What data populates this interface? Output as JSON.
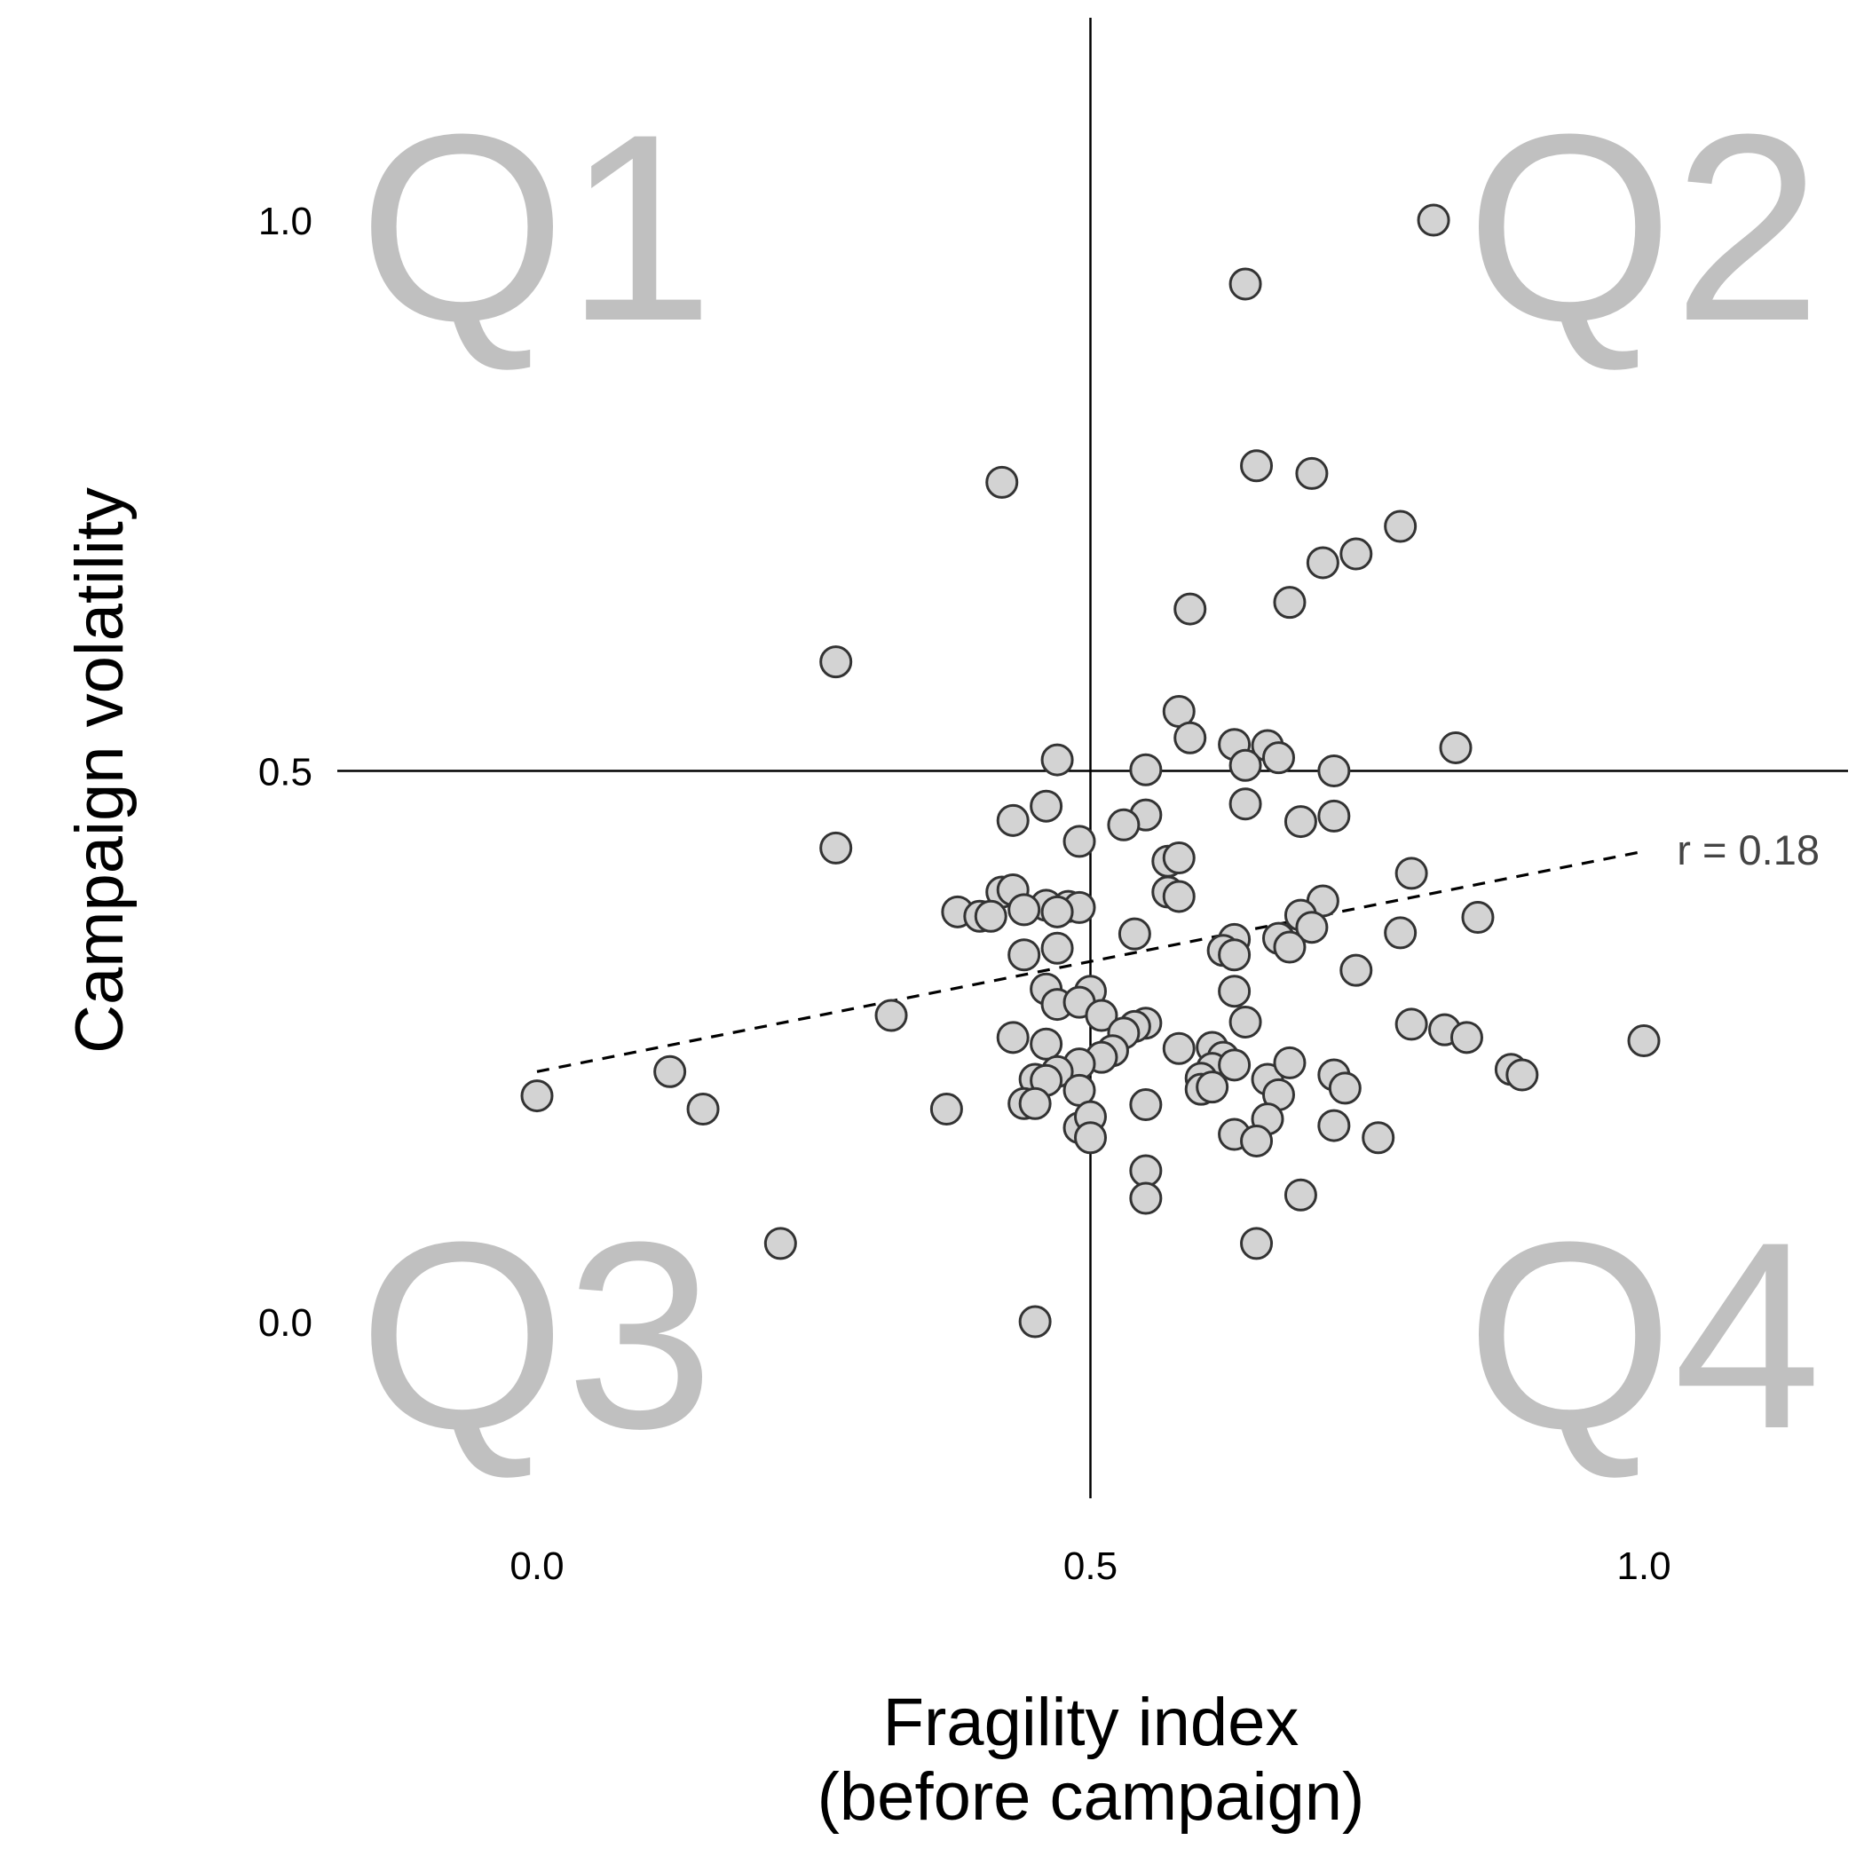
{
  "chart_data": {
    "type": "scatter",
    "xlabel": [
      "Fragility index",
      "(before campaign)"
    ],
    "ylabel": "Campaign volatility",
    "xlim": [
      -0.18,
      1.18
    ],
    "ylim": [
      -0.18,
      1.18
    ],
    "x_ticks": [
      "0.0",
      "0.5",
      "1.0"
    ],
    "y_ticks": [
      "1.0",
      "0.5",
      "0.0"
    ],
    "x_tick_values": [
      0.0,
      0.5,
      1.0
    ],
    "y_tick_values": [
      1.0,
      0.5,
      0.0
    ],
    "reference_lines": {
      "x": 0.5,
      "y": 0.5
    },
    "quadrants": [
      {
        "label": "Q1",
        "position": "top-left"
      },
      {
        "label": "Q2",
        "position": "top-right"
      },
      {
        "label": "Q3",
        "position": "bottom-left"
      },
      {
        "label": "Q4",
        "position": "bottom-right"
      }
    ],
    "trendline": {
      "x": [
        0.0,
        1.0
      ],
      "y": [
        0.227,
        0.427
      ],
      "label": "r = 0.18"
    },
    "grid": false,
    "points": [
      [
        0.81,
        1.0
      ],
      [
        0.64,
        0.942
      ],
      [
        0.65,
        0.777
      ],
      [
        0.7,
        0.77
      ],
      [
        0.42,
        0.762
      ],
      [
        0.78,
        0.722
      ],
      [
        0.74,
        0.697
      ],
      [
        0.71,
        0.689
      ],
      [
        0.59,
        0.647
      ],
      [
        0.68,
        0.653
      ],
      [
        0.27,
        0.599
      ],
      [
        0.58,
        0.554
      ],
      [
        0.59,
        0.53
      ],
      [
        0.63,
        0.524
      ],
      [
        0.66,
        0.523
      ],
      [
        0.67,
        0.512
      ],
      [
        0.64,
        0.505
      ],
      [
        0.47,
        0.51
      ],
      [
        0.55,
        0.501
      ],
      [
        0.72,
        0.5
      ],
      [
        0.83,
        0.521
      ],
      [
        0.64,
        0.47
      ],
      [
        0.46,
        0.468
      ],
      [
        0.55,
        0.46
      ],
      [
        0.43,
        0.455
      ],
      [
        0.69,
        0.454
      ],
      [
        0.72,
        0.459
      ],
      [
        0.53,
        0.451
      ],
      [
        0.49,
        0.436
      ],
      [
        0.27,
        0.43
      ],
      [
        0.57,
        0.418
      ],
      [
        0.58,
        0.421
      ],
      [
        0.79,
        0.407
      ],
      [
        0.42,
        0.39
      ],
      [
        0.43,
        0.392
      ],
      [
        0.46,
        0.378
      ],
      [
        0.48,
        0.377
      ],
      [
        0.49,
        0.376
      ],
      [
        0.44,
        0.374
      ],
      [
        0.38,
        0.372
      ],
      [
        0.4,
        0.368
      ],
      [
        0.41,
        0.368
      ],
      [
        0.47,
        0.372
      ],
      [
        0.57,
        0.39
      ],
      [
        0.58,
        0.386
      ],
      [
        0.71,
        0.382
      ],
      [
        0.69,
        0.369
      ],
      [
        0.7,
        0.358
      ],
      [
        0.85,
        0.367
      ],
      [
        0.54,
        0.352
      ],
      [
        0.63,
        0.347
      ],
      [
        0.62,
        0.337
      ],
      [
        0.63,
        0.333
      ],
      [
        0.67,
        0.348
      ],
      [
        0.68,
        0.34
      ],
      [
        0.78,
        0.353
      ],
      [
        0.47,
        0.339
      ],
      [
        0.44,
        0.333
      ],
      [
        0.74,
        0.319
      ],
      [
        0.5,
        0.3
      ],
      [
        0.46,
        0.302
      ],
      [
        0.47,
        0.288
      ],
      [
        0.49,
        0.29
      ],
      [
        0.32,
        0.278
      ],
      [
        0.51,
        0.278
      ],
      [
        0.63,
        0.3
      ],
      [
        0.64,
        0.272
      ],
      [
        0.79,
        0.27
      ],
      [
        0.82,
        0.265
      ],
      [
        0.84,
        0.258
      ],
      [
        0.55,
        0.271
      ],
      [
        0.54,
        0.268
      ],
      [
        0.53,
        0.262
      ],
      [
        0.43,
        0.258
      ],
      [
        0.46,
        0.252
      ],
      [
        0.52,
        0.246
      ],
      [
        0.51,
        0.24
      ],
      [
        0.49,
        0.234
      ],
      [
        0.58,
        0.248
      ],
      [
        0.61,
        0.249
      ],
      [
        0.62,
        0.24
      ],
      [
        0.61,
        0.23
      ],
      [
        0.63,
        0.233
      ],
      [
        0.66,
        0.22
      ],
      [
        0.68,
        0.235
      ],
      [
        0.72,
        0.224
      ],
      [
        0.73,
        0.212
      ],
      [
        0.6,
        0.221
      ],
      [
        0.6,
        0.211
      ],
      [
        0.61,
        0.213
      ],
      [
        0.47,
        0.227
      ],
      [
        0.45,
        0.22
      ],
      [
        0.46,
        0.219
      ],
      [
        0.44,
        0.198
      ],
      [
        0.45,
        0.198
      ],
      [
        0.49,
        0.21
      ],
      [
        0.55,
        0.197
      ],
      [
        0.67,
        0.206
      ],
      [
        0.66,
        0.184
      ],
      [
        0.49,
        0.176
      ],
      [
        0.5,
        0.186
      ],
      [
        0.5,
        0.167
      ],
      [
        0.63,
        0.17
      ],
      [
        0.65,
        0.164
      ],
      [
        0.72,
        0.178
      ],
      [
        0.76,
        0.167
      ],
      [
        0.12,
        0.227
      ],
      [
        0.15,
        0.193
      ],
      [
        0.37,
        0.193
      ],
      [
        1.0,
        0.255
      ],
      [
        0.88,
        0.229
      ],
      [
        0.89,
        0.224
      ],
      [
        0.0,
        0.205
      ],
      [
        0.55,
        0.137
      ],
      [
        0.55,
        0.112
      ],
      [
        0.69,
        0.115
      ],
      [
        0.22,
        0.071
      ],
      [
        0.65,
        0.071
      ],
      [
        0.45,
        0.0
      ]
    ]
  }
}
